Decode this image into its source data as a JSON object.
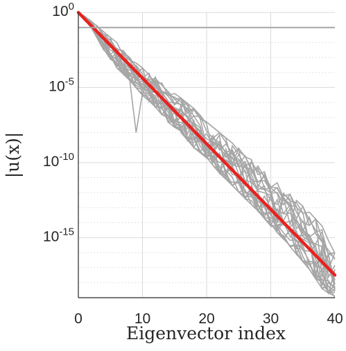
{
  "chart_data": {
    "type": "line",
    "title": "",
    "xlabel": "Eigenvector index",
    "ylabel": "|u(x)|",
    "xlim": [
      0,
      40
    ],
    "ylim": [
      1e-19,
      1
    ],
    "yscale": "log",
    "xticks": [
      "0",
      "10",
      "20",
      "30",
      "40"
    ],
    "yticks": [
      {
        "base": "10",
        "exp": "0"
      },
      {
        "base": "10",
        "exp": "-5"
      },
      {
        "base": "10",
        "exp": "-10"
      },
      {
        "base": "10",
        "exp": "-15"
      }
    ],
    "grid": true,
    "legend": "none",
    "colors": {
      "samples": "#a6a6a6",
      "reference": "#e8221f",
      "axis": "#262626",
      "grid": "#d9d9d9"
    },
    "series": [
      {
        "role": "reference",
        "x": [
          0,
          40
        ],
        "y": [
          1.0,
          3.2e-18
        ]
      },
      {
        "role": "sample",
        "x": [
          0,
          40
        ],
        "y": [
          0.1,
          0.1
        ]
      }
    ],
    "sample_band": {
      "x": [
        0,
        2,
        4,
        6,
        8,
        10,
        12,
        14,
        16,
        18,
        20,
        22,
        24,
        26,
        28,
        30,
        32,
        34,
        36,
        38,
        40
      ],
      "upper": [
        1.0,
        0.3,
        0.05,
        0.01,
        0.001,
        0.0002,
        5e-05,
        8e-06,
        2e-06,
        4e-07,
        5e-08,
        1e-08,
        2e-09,
        4e-10,
        6e-11,
        1e-11,
        2e-12,
        3e-13,
        5e-14,
        6e-15,
        1e-16
      ],
      "lower": [
        1.0,
        0.1,
        0.003,
        0.0002,
        3e-05,
        3e-06,
        5e-07,
        5e-08,
        1e-08,
        1e-09,
        2e-10,
        2e-11,
        3e-12,
        4e-13,
        6e-14,
        6e-15,
        8e-16,
        8e-17,
        8e-18,
        4e-19,
        1e-19
      ],
      "dip": {
        "x": 9,
        "y": 1e-08
      }
    }
  }
}
